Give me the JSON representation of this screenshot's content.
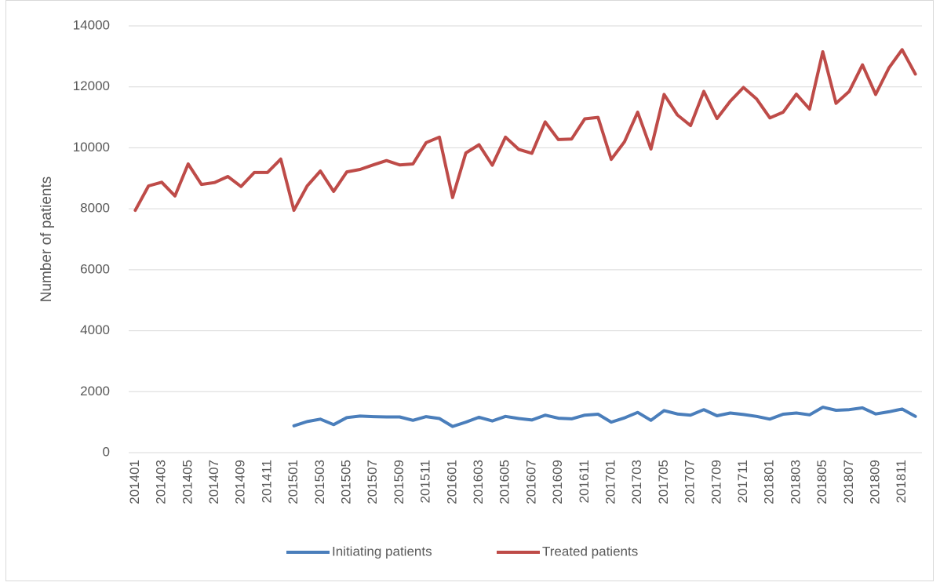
{
  "chart_data": {
    "type": "line",
    "y_label": "Number of patients",
    "categories": [
      "201401",
      null,
      "201403",
      null,
      "201405",
      null,
      "201407",
      null,
      "201409",
      null,
      "201411",
      null,
      "201501",
      null,
      "201503",
      null,
      "201505",
      null,
      "201507",
      null,
      "201509",
      null,
      "201511",
      null,
      "201601",
      null,
      "201603",
      null,
      "201605",
      null,
      "201607",
      null,
      "201609",
      null,
      "201611",
      null,
      "201701",
      null,
      "201703",
      null,
      "201705",
      null,
      "201707",
      null,
      "201709",
      null,
      "201711",
      null,
      "201801",
      null,
      "201803",
      null,
      "201805",
      null,
      "201807",
      null,
      "201809",
      null,
      "201811",
      null
    ],
    "series": [
      {
        "name": "Initiating patients",
        "color": "#4a7ebb",
        "values": [
          null,
          null,
          null,
          null,
          null,
          null,
          null,
          null,
          null,
          null,
          null,
          null,
          880,
          1020,
          1100,
          920,
          1150,
          1200,
          1180,
          1170,
          1170,
          1060,
          1180,
          1120,
          860,
          1000,
          1160,
          1040,
          1190,
          1120,
          1070,
          1230,
          1130,
          1110,
          1230,
          1260,
          1000,
          1140,
          1320,
          1060,
          1380,
          1270,
          1230,
          1410,
          1210,
          1300,
          1250,
          1190,
          1100,
          1260,
          1300,
          1240,
          1490,
          1390,
          1410,
          1470,
          1270,
          1340,
          1430,
          1190
        ]
      },
      {
        "name": "Treated patients",
        "color": "#be4b48",
        "values": [
          7950,
          8750,
          8870,
          8420,
          9470,
          8800,
          8860,
          9060,
          8730,
          9190,
          9190,
          9630,
          7950,
          8750,
          9240,
          8570,
          9210,
          9290,
          9440,
          9580,
          9440,
          9470,
          10170,
          10350,
          8370,
          9830,
          10100,
          9430,
          10350,
          9950,
          9820,
          10850,
          10270,
          10290,
          10950,
          11000,
          9620,
          10200,
          11170,
          9960,
          11750,
          11080,
          10730,
          11850,
          10960,
          11530,
          11980,
          11600,
          10980,
          11170,
          11760,
          11270,
          13150,
          11460,
          11850,
          12720,
          11750,
          12620,
          13220,
          12420
        ]
      }
    ],
    "ylim": [
      0,
      14000
    ],
    "yticks": [
      0,
      2000,
      4000,
      6000,
      8000,
      10000,
      12000,
      14000
    ],
    "grid": true,
    "legend": "bottom"
  }
}
